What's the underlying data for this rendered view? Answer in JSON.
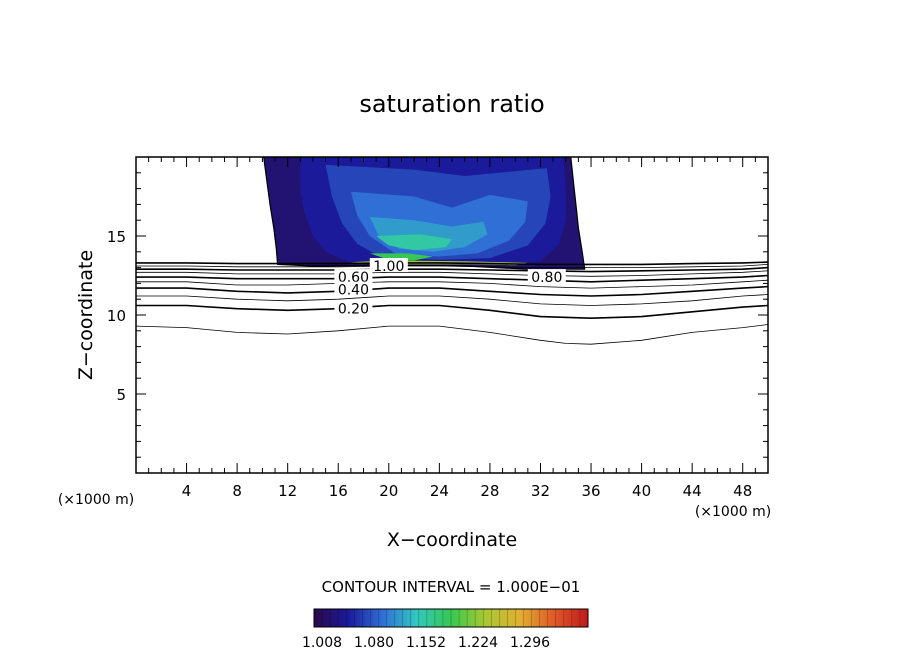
{
  "chart_data": {
    "type": "contour",
    "title": "saturation ratio",
    "xlabel": "X−coordinate",
    "ylabel": "Z−coordinate",
    "x_unit_left": "(×1000 m)",
    "x_unit_right": "(×1000 m)",
    "xlim": [
      0,
      50
    ],
    "ylim": [
      0,
      20
    ],
    "x_ticks": [
      4,
      8,
      12,
      16,
      20,
      24,
      28,
      32,
      36,
      40,
      44,
      48
    ],
    "y_ticks": [
      5,
      10,
      15
    ],
    "contour_interval_label": "CONTOUR INTERVAL = 1.000E−01",
    "contour_levels": [
      0.1,
      0.2,
      0.3,
      0.4,
      0.5,
      0.6,
      0.7,
      0.8,
      0.9,
      1.0
    ],
    "contour_labels": [
      {
        "text": "1.00",
        "x": 20.0,
        "y": 13.1
      },
      {
        "text": "0.80",
        "x": 32.5,
        "y": 12.4
      },
      {
        "text": "0.60",
        "x": 17.2,
        "y": 12.4
      },
      {
        "text": "0.40",
        "x": 17.2,
        "y": 11.6
      },
      {
        "text": "0.20",
        "x": 17.2,
        "y": 10.4
      }
    ],
    "contour_lines": [
      {
        "level": 0.1,
        "points": [
          [
            0,
            9.3
          ],
          [
            4,
            9.2
          ],
          [
            8,
            8.9
          ],
          [
            12,
            8.8
          ],
          [
            16,
            9.0
          ],
          [
            20,
            9.3
          ],
          [
            24,
            9.3
          ],
          [
            28,
            8.9
          ],
          [
            32,
            8.4
          ],
          [
            34,
            8.2
          ],
          [
            36,
            8.15
          ],
          [
            40,
            8.4
          ],
          [
            44,
            8.9
          ],
          [
            48,
            9.2
          ],
          [
            50,
            9.4
          ]
        ]
      },
      {
        "level": 0.2,
        "points": [
          [
            0,
            10.6
          ],
          [
            4,
            10.6
          ],
          [
            8,
            10.4
          ],
          [
            12,
            10.3
          ],
          [
            16,
            10.4
          ],
          [
            20,
            10.6
          ],
          [
            24,
            10.6
          ],
          [
            28,
            10.3
          ],
          [
            32,
            9.9
          ],
          [
            36,
            9.8
          ],
          [
            40,
            9.9
          ],
          [
            44,
            10.2
          ],
          [
            48,
            10.5
          ],
          [
            50,
            10.6
          ]
        ]
      },
      {
        "level": 0.3,
        "points": [
          [
            0,
            11.2
          ],
          [
            4,
            11.2
          ],
          [
            8,
            11.0
          ],
          [
            12,
            10.9
          ],
          [
            16,
            11.0
          ],
          [
            20,
            11.2
          ],
          [
            24,
            11.2
          ],
          [
            28,
            11.0
          ],
          [
            32,
            10.7
          ],
          [
            36,
            10.6
          ],
          [
            40,
            10.7
          ],
          [
            44,
            10.9
          ],
          [
            48,
            11.2
          ],
          [
            50,
            11.3
          ]
        ]
      },
      {
        "level": 0.4,
        "points": [
          [
            0,
            11.7
          ],
          [
            4,
            11.7
          ],
          [
            8,
            11.5
          ],
          [
            12,
            11.4
          ],
          [
            16,
            11.5
          ],
          [
            20,
            11.7
          ],
          [
            24,
            11.7
          ],
          [
            28,
            11.5
          ],
          [
            32,
            11.3
          ],
          [
            36,
            11.2
          ],
          [
            40,
            11.3
          ],
          [
            44,
            11.5
          ],
          [
            48,
            11.7
          ],
          [
            50,
            11.8
          ]
        ]
      },
      {
        "level": 0.5,
        "points": [
          [
            0,
            12.1
          ],
          [
            4,
            12.1
          ],
          [
            8,
            11.9
          ],
          [
            12,
            11.9
          ],
          [
            16,
            12.0
          ],
          [
            20,
            12.1
          ],
          [
            24,
            12.1
          ],
          [
            28,
            12.0
          ],
          [
            32,
            11.8
          ],
          [
            36,
            11.7
          ],
          [
            40,
            11.8
          ],
          [
            44,
            11.9
          ],
          [
            48,
            12.1
          ],
          [
            50,
            12.2
          ]
        ]
      },
      {
        "level": 0.6,
        "points": [
          [
            0,
            12.4
          ],
          [
            4,
            12.4
          ],
          [
            8,
            12.3
          ],
          [
            12,
            12.3
          ],
          [
            16,
            12.3
          ],
          [
            20,
            12.4
          ],
          [
            24,
            12.4
          ],
          [
            28,
            12.3
          ],
          [
            32,
            12.2
          ],
          [
            36,
            12.1
          ],
          [
            40,
            12.2
          ],
          [
            44,
            12.3
          ],
          [
            48,
            12.4
          ],
          [
            50,
            12.5
          ]
        ]
      },
      {
        "level": 0.7,
        "points": [
          [
            0,
            12.7
          ],
          [
            4,
            12.7
          ],
          [
            8,
            12.6
          ],
          [
            12,
            12.6
          ],
          [
            16,
            12.6
          ],
          [
            20,
            12.7
          ],
          [
            24,
            12.7
          ],
          [
            28,
            12.6
          ],
          [
            32,
            12.5
          ],
          [
            36,
            12.45
          ],
          [
            40,
            12.5
          ],
          [
            44,
            12.6
          ],
          [
            48,
            12.7
          ],
          [
            50,
            12.8
          ]
        ]
      },
      {
        "level": 0.8,
        "points": [
          [
            0,
            12.9
          ],
          [
            4,
            12.9
          ],
          [
            8,
            12.85
          ],
          [
            12,
            12.85
          ],
          [
            16,
            12.85
          ],
          [
            20,
            12.9
          ],
          [
            24,
            12.9
          ],
          [
            28,
            12.85
          ],
          [
            32,
            12.8
          ],
          [
            36,
            12.75
          ],
          [
            40,
            12.8
          ],
          [
            44,
            12.85
          ],
          [
            48,
            12.9
          ],
          [
            50,
            13.0
          ]
        ]
      },
      {
        "level": 0.9,
        "points": [
          [
            0,
            13.1
          ],
          [
            4,
            13.1
          ],
          [
            8,
            13.05
          ],
          [
            12,
            13.05
          ],
          [
            16,
            13.05
          ],
          [
            20,
            13.1
          ],
          [
            24,
            13.1
          ],
          [
            28,
            13.05
          ],
          [
            32,
            13.0
          ],
          [
            36,
            13.0
          ],
          [
            40,
            13.0
          ],
          [
            44,
            13.05
          ],
          [
            48,
            13.1
          ],
          [
            50,
            13.2
          ]
        ]
      },
      {
        "level": 1.0,
        "points": [
          [
            0,
            13.3
          ],
          [
            4,
            13.3
          ],
          [
            8,
            13.25
          ],
          [
            12,
            13.25
          ],
          [
            16,
            13.25
          ],
          [
            20,
            13.3
          ],
          [
            24,
            13.3
          ],
          [
            28,
            13.25
          ],
          [
            32,
            13.2
          ],
          [
            36,
            13.2
          ],
          [
            40,
            13.2
          ],
          [
            44,
            13.25
          ],
          [
            48,
            13.3
          ],
          [
            50,
            13.35
          ]
        ]
      }
    ],
    "supersaturated_region": {
      "outline": [
        [
          10.1,
          20
        ],
        [
          10.3,
          18.8
        ],
        [
          10.6,
          17.0
        ],
        [
          10.9,
          15.5
        ],
        [
          11.1,
          14.2
        ],
        [
          11.2,
          13.2
        ],
        [
          14,
          13.1
        ],
        [
          20,
          13.15
        ],
        [
          26,
          13.1
        ],
        [
          31,
          12.9
        ],
        [
          35.5,
          12.9
        ],
        [
          35.3,
          14.0
        ],
        [
          35.0,
          15.5
        ],
        [
          34.8,
          17.0
        ],
        [
          34.6,
          18.5
        ],
        [
          34.4,
          20
        ]
      ],
      "fill_levels": [
        {
          "value": 1.02,
          "outline": [
            [
              10.1,
              20
            ],
            [
              10.3,
              18.8
            ],
            [
              10.6,
              17.0
            ],
            [
              10.9,
              15.5
            ],
            [
              11.1,
              14.2
            ],
            [
              11.2,
              13.2
            ],
            [
              14,
              13.1
            ],
            [
              20,
              13.15
            ],
            [
              26,
              13.1
            ],
            [
              31,
              12.9
            ],
            [
              35.5,
              12.9
            ],
            [
              35.3,
              14.0
            ],
            [
              35.0,
              15.5
            ],
            [
              34.8,
              17.0
            ],
            [
              34.6,
              18.5
            ],
            [
              34.4,
              20
            ]
          ]
        },
        {
          "value": 1.04,
          "outline": [
            [
              13,
              20
            ],
            [
              13,
              18
            ],
            [
              13.3,
              16.5
            ],
            [
              14,
              15
            ],
            [
              15,
              14
            ],
            [
              17,
              13.3
            ],
            [
              22,
              13.3
            ],
            [
              28,
              13.2
            ],
            [
              32,
              13.4
            ],
            [
              33.5,
              14.5
            ],
            [
              34,
              16
            ],
            [
              34,
              18
            ],
            [
              33.8,
              20
            ]
          ]
        },
        {
          "value": 1.06,
          "outline": [
            [
              15,
              19.5
            ],
            [
              15.5,
              17.5
            ],
            [
              16.3,
              15.8
            ],
            [
              17.5,
              14.5
            ],
            [
              19.5,
              13.6
            ],
            [
              24,
              13.5
            ],
            [
              28,
              13.6
            ],
            [
              31,
              14.4
            ],
            [
              32.4,
              15.8
            ],
            [
              32.8,
              17.5
            ],
            [
              32.5,
              19.3
            ],
            [
              26,
              18.8
            ],
            [
              22,
              19.2
            ]
          ]
        },
        {
          "value": 1.08,
          "outline": [
            [
              17,
              17.8
            ],
            [
              17.5,
              16.3
            ],
            [
              18.5,
              15
            ],
            [
              20.5,
              13.9
            ],
            [
              24,
              13.7
            ],
            [
              27,
              13.9
            ],
            [
              29.5,
              14.7
            ],
            [
              30.8,
              15.9
            ],
            [
              31,
              17.2
            ],
            [
              28,
              17.6
            ],
            [
              25,
              16.8
            ],
            [
              22,
              17.5
            ]
          ]
        },
        {
          "value": 1.1,
          "outline": [
            [
              18.5,
              16.2
            ],
            [
              19.2,
              15
            ],
            [
              20.8,
              14.2
            ],
            [
              23.5,
              14
            ],
            [
              26,
              14.3
            ],
            [
              27.8,
              15.1
            ],
            [
              27.5,
              15.9
            ],
            [
              25,
              15.6
            ],
            [
              22,
              16
            ]
          ]
        },
        {
          "value": 1.13,
          "outline": [
            [
              19,
              15
            ],
            [
              20,
              14.4
            ],
            [
              22,
              14.1
            ],
            [
              24.5,
              14.3
            ],
            [
              25,
              14.8
            ],
            [
              22.5,
              15.1
            ]
          ]
        },
        {
          "value": 1.16,
          "outline": [
            [
              18.5,
              13.9
            ],
            [
              20,
              13.5
            ],
            [
              22,
              13.45
            ],
            [
              23.5,
              13.7
            ],
            [
              21.5,
              13.9
            ]
          ]
        },
        {
          "value": 1.2,
          "outline": [
            [
              17,
              13.35
            ],
            [
              20,
              13.2
            ],
            [
              26,
              13.2
            ],
            [
              30,
              13.15
            ],
            [
              31,
              13.3
            ],
            [
              26,
              13.4
            ],
            [
              20,
              13.45
            ]
          ]
        }
      ]
    },
    "colorbar": {
      "tick_labels": [
        "1.008",
        "1.080",
        "1.152",
        "1.224",
        "1.296"
      ],
      "range": [
        1.0,
        1.32
      ],
      "stops": [
        "#2a0a4a",
        "#1a1a9a",
        "#2f6fd6",
        "#32c8c0",
        "#36c850",
        "#a8c832",
        "#e0b030",
        "#e05a28",
        "#c01a1a"
      ]
    }
  }
}
